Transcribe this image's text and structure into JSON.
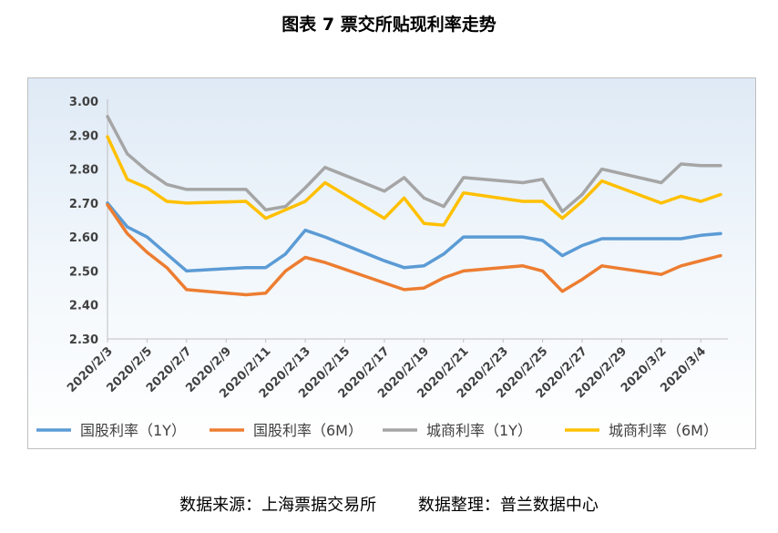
{
  "page": {
    "title": "图表 7  票交所贴现利率走势"
  },
  "source": {
    "text": "数据来源：上海票据交易所        数据整理：普兰数据中心"
  },
  "colors": {
    "guogu_1y": "#5b9bd5",
    "guogu_6m": "#ed7d31",
    "chengshang_1y": "#a5a5a5",
    "chengshang_6m": "#ffc000"
  },
  "chart_data": {
    "type": "line",
    "title": "",
    "xlabel": "",
    "ylabel": "",
    "ylim": [
      2.3,
      3.0
    ],
    "yticks": [
      "3.00",
      "2.90",
      "2.80",
      "2.70",
      "2.60",
      "2.50",
      "2.40",
      "2.30"
    ],
    "x_tick_labels": [
      "2020/2/3",
      "2020/2/5",
      "2020/2/7",
      "2020/2/9",
      "2020/2/11",
      "2020/2/13",
      "2020/2/15",
      "2020/2/17",
      "2020/2/19",
      "2020/2/21",
      "2020/2/23",
      "2020/2/25",
      "2020/2/27",
      "2020/2/29",
      "2020/3/2",
      "2020/3/4"
    ],
    "x": [
      "2020/2/3",
      "2020/2/4",
      "2020/2/5",
      "2020/2/6",
      "2020/2/7",
      "2020/2/10",
      "2020/2/11",
      "2020/2/12",
      "2020/2/13",
      "2020/2/14",
      "2020/2/17",
      "2020/2/18",
      "2020/2/19",
      "2020/2/20",
      "2020/2/21",
      "2020/2/24",
      "2020/2/25",
      "2020/2/26",
      "2020/2/27",
      "2020/2/28",
      "2020/3/2",
      "2020/3/3",
      "2020/3/4",
      "2020/3/5"
    ],
    "x_index": [
      0,
      1,
      2,
      3,
      4,
      7,
      8,
      9,
      10,
      11,
      14,
      15,
      16,
      17,
      18,
      21,
      22,
      23,
      24,
      25,
      28,
      29,
      30,
      31
    ],
    "x_tick_index": [
      0,
      2,
      4,
      6,
      8,
      10,
      12,
      14,
      16,
      18,
      20,
      22,
      24,
      26,
      28,
      30
    ],
    "grid": false,
    "legend_position": "bottom",
    "series": [
      {
        "name": "国股利率（1Y）",
        "color": "#5b9bd5",
        "values": [
          2.7,
          2.63,
          2.6,
          2.55,
          2.5,
          2.51,
          2.51,
          2.55,
          2.62,
          2.6,
          2.53,
          2.51,
          2.515,
          2.55,
          2.6,
          2.6,
          2.59,
          2.545,
          2.575,
          2.595,
          2.595,
          2.595,
          2.605,
          2.61
        ]
      },
      {
        "name": "国股利率（6M）",
        "color": "#ed7d31",
        "values": [
          2.695,
          2.61,
          2.555,
          2.51,
          2.445,
          2.43,
          2.435,
          2.5,
          2.54,
          2.525,
          2.465,
          2.445,
          2.45,
          2.48,
          2.5,
          2.515,
          2.5,
          2.44,
          2.475,
          2.515,
          2.49,
          2.515,
          2.53,
          2.545
        ]
      },
      {
        "name": "城商利率（1Y）",
        "color": "#a5a5a5",
        "values": [
          2.955,
          2.845,
          2.795,
          2.755,
          2.74,
          2.74,
          2.68,
          2.69,
          2.745,
          2.805,
          2.735,
          2.775,
          2.715,
          2.69,
          2.775,
          2.76,
          2.77,
          2.675,
          2.725,
          2.8,
          2.76,
          2.815,
          2.81,
          2.81
        ]
      },
      {
        "name": "城商利率（6M）",
        "color": "#ffc000",
        "values": [
          2.895,
          2.77,
          2.745,
          2.705,
          2.7,
          2.705,
          2.655,
          2.68,
          2.705,
          2.76,
          2.655,
          2.715,
          2.64,
          2.635,
          2.73,
          2.705,
          2.705,
          2.655,
          2.705,
          2.765,
          2.7,
          2.72,
          2.705,
          2.725
        ]
      }
    ]
  }
}
